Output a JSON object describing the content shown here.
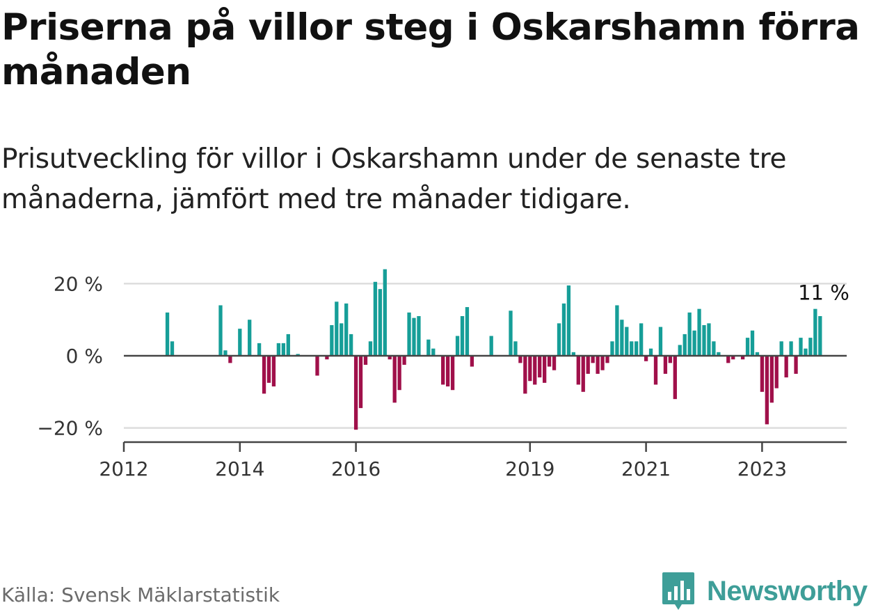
{
  "title": "Priserna på villor steg i Oskarshamn förra månaden",
  "subtitle": "Prisutveckling för villor i Oskarshamn under de senaste tre månaderna, jämfört med tre månader tidigare.",
  "source": "Källa: Svensk Mäklarstatistik",
  "brand": {
    "name": "Newsworthy",
    "icon": "bar-chart-bubble-icon"
  },
  "colors": {
    "positive": "#169e98",
    "negative": "#a0104a",
    "zero_line": "#444444",
    "grid": "#dddddd",
    "axis": "#444444",
    "brand": "#3e9e98"
  },
  "chart_data": {
    "type": "bar",
    "title": "Prisutveckling för villor i Oskarshamn",
    "xlabel": "",
    "ylabel": "",
    "unit": "%",
    "ylim": [
      -24,
      25
    ],
    "y_ticks": [
      {
        "value": 20,
        "label": "20 %"
      },
      {
        "value": 0,
        "label": "0 %"
      },
      {
        "value": -20,
        "label": "−20 %"
      }
    ],
    "x_range": [
      2012,
      2024.5
    ],
    "x_ticks": [
      {
        "value": 2012,
        "label": "2012"
      },
      {
        "value": 2014,
        "label": "2014"
      },
      {
        "value": 2016,
        "label": "2016"
      },
      {
        "value": 2019,
        "label": "2019"
      },
      {
        "value": 2021,
        "label": "2021"
      },
      {
        "value": 2023,
        "label": "2023"
      }
    ],
    "start": {
      "year": 2012,
      "month": 1
    },
    "values": [
      0,
      0,
      0,
      0,
      0,
      0,
      0,
      0,
      0,
      12,
      4,
      0,
      0,
      0,
      0,
      0,
      0,
      0,
      0,
      0,
      14,
      1.5,
      -2,
      0,
      7.5,
      0,
      10,
      0,
      3.5,
      -10.5,
      -7.5,
      -8.5,
      3.5,
      3.5,
      6,
      0,
      0.5,
      0,
      0,
      0,
      -5.5,
      0,
      -1,
      8.5,
      15,
      9,
      14.5,
      6,
      -20.5,
      -14.5,
      -2.5,
      4,
      20.5,
      18.5,
      24,
      -1,
      -13,
      -9.5,
      -2.5,
      12,
      10.5,
      11,
      0,
      4.5,
      2,
      0,
      -8,
      -8.5,
      -9.5,
      5.5,
      11,
      13.5,
      -3,
      0,
      0,
      0,
      5.5,
      0,
      0,
      0,
      12.5,
      4,
      -2,
      -10.5,
      -7,
      -8,
      -6,
      -7.5,
      -3,
      -4,
      9,
      14.5,
      19.5,
      1,
      -8,
      -10,
      -5,
      -2,
      -5,
      -4,
      -2,
      4,
      14,
      10,
      8,
      4,
      4,
      9,
      -1.5,
      2,
      -8,
      8,
      -5,
      -2,
      -12,
      3,
      6,
      12,
      7,
      13,
      8.5,
      9,
      4,
      1,
      0,
      -2,
      -1,
      0,
      -1,
      5,
      7,
      1,
      -10,
      -19,
      -13,
      -9,
      4,
      -6,
      4,
      -5,
      5,
      2,
      5,
      13,
      11
    ],
    "last_value_label": "11 %"
  }
}
